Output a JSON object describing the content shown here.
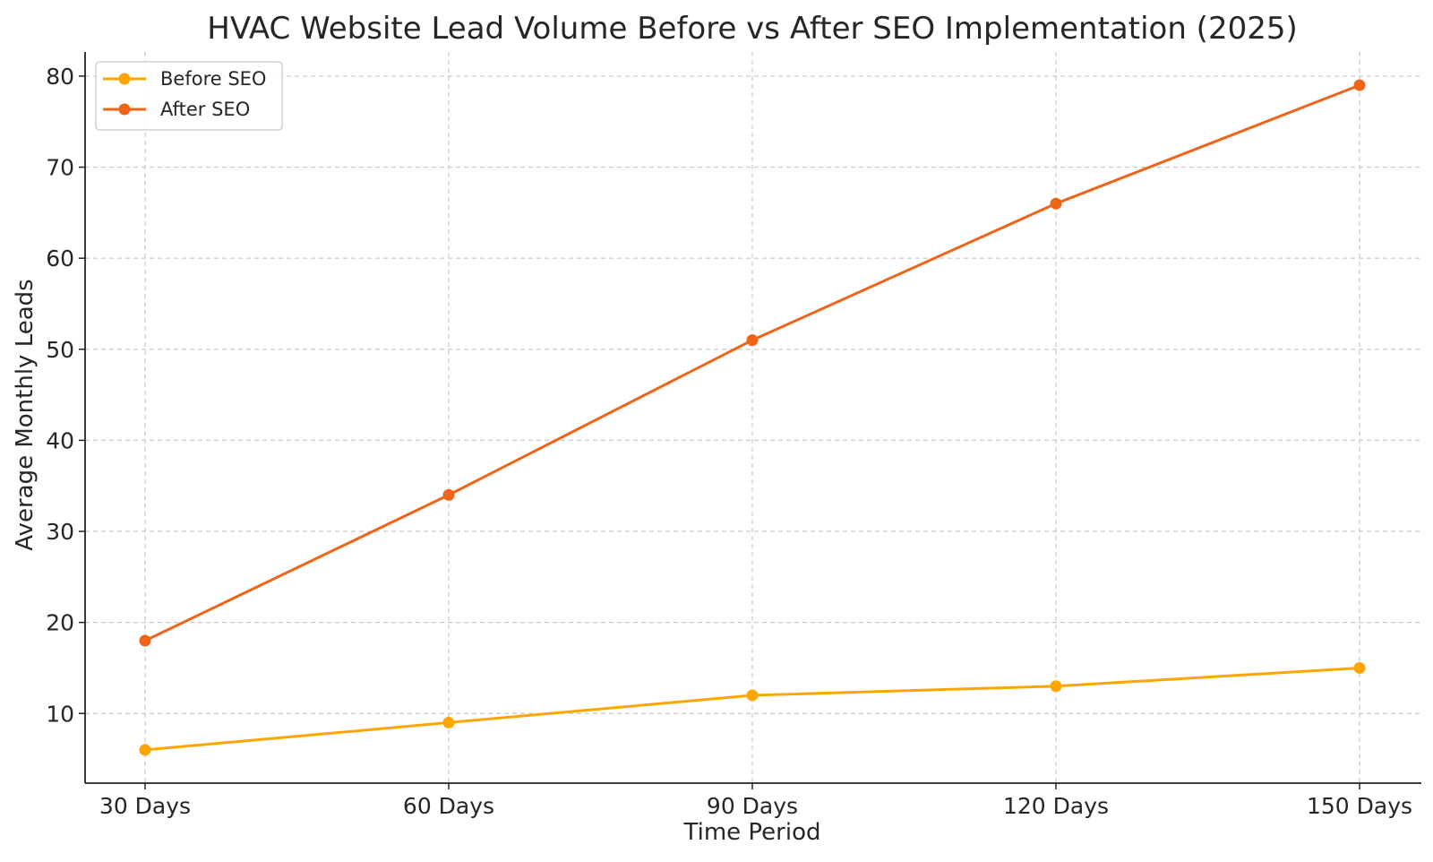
{
  "chart_data": {
    "type": "line",
    "title": "HVAC Website Lead Volume Before vs After SEO Implementation (2025)",
    "xlabel": "Time Period",
    "ylabel": "Average Monthly Leads",
    "categories": [
      "30 Days",
      "60 Days",
      "90 Days",
      "120 Days",
      "150 Days"
    ],
    "ylim": [
      2.35,
      82.65
    ],
    "yticks": [
      10,
      20,
      30,
      40,
      50,
      60,
      70,
      80
    ],
    "grid": true,
    "legend_position": "top-left",
    "series": [
      {
        "name": "Before SEO",
        "color": "#FFA500",
        "values": [
          6,
          9,
          12,
          13,
          15
        ]
      },
      {
        "name": "After SEO",
        "color": "#F06418",
        "values": [
          18,
          34,
          51,
          66,
          79
        ]
      }
    ]
  }
}
